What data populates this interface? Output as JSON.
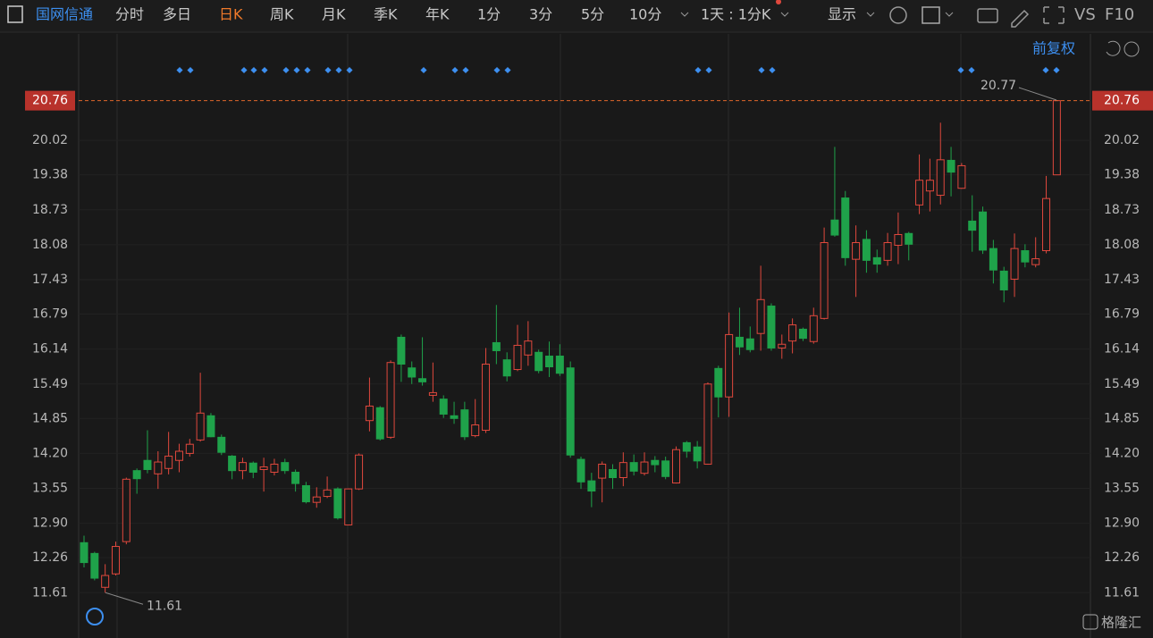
{
  "header": {
    "stock_name": "国网信通",
    "periods": [
      "分时",
      "多日",
      "日K",
      "周K",
      "月K",
      "季K",
      "年K",
      "1分",
      "3分",
      "5分",
      "10分"
    ],
    "interval": "1天 : 1分K",
    "display": "显示",
    "vs": "VS",
    "f10": "F10"
  },
  "adjust": "前复权",
  "watermark": "格隆汇",
  "chart_data": {
    "type": "candlestick",
    "categories": [
      null,
      null,
      null,
      null,
      null,
      null,
      null,
      null,
      null,
      null,
      null,
      null,
      null,
      null,
      null,
      null,
      null,
      null,
      null,
      null,
      null,
      null,
      null,
      null,
      null,
      null,
      null,
      null,
      null,
      null,
      null,
      null,
      null,
      null,
      null,
      null,
      null,
      null,
      null,
      null,
      null,
      null,
      null,
      null,
      null,
      null,
      null,
      null,
      null,
      null,
      null,
      null,
      null,
      null,
      null,
      null,
      null,
      null,
      null,
      null,
      null,
      null,
      null,
      null,
      null,
      null,
      null,
      null,
      null,
      null,
      null,
      null,
      null,
      null,
      null,
      null,
      null,
      null,
      null,
      null,
      null,
      null,
      null,
      null,
      null,
      null,
      null,
      null,
      null,
      null,
      null,
      null,
      null
    ],
    "open": [
      12.54,
      12.34,
      11.71,
      11.96,
      12.56,
      13.88,
      14.07,
      13.82,
      13.92,
      14.07,
      14.2,
      14.45,
      14.9,
      14.5,
      14.15,
      13.88,
      14.02,
      13.9,
      13.85,
      14.03,
      13.85,
      13.6,
      13.29,
      13.4,
      13.54,
      12.87,
      13.54,
      14.81,
      15.05,
      14.5,
      16.36,
      15.79,
      15.59,
      15.28,
      15.21,
      14.9,
      15.01,
      14.53,
      14.63,
      16.26,
      15.94,
      15.76,
      16.03,
      16.08,
      16.01,
      16.01,
      15.79,
      14.09,
      13.69,
      13.74,
      13.9,
      13.75,
      14.03,
      13.83,
      14.07,
      14.06,
      13.65,
      14.4,
      14.32,
      14.0,
      15.78,
      15.25,
      16.36,
      16.33,
      16.43,
      16.94,
      16.16,
      16.29,
      16.51,
      16.28,
      16.71,
      18.54,
      18.95,
      17.81,
      18.18,
      17.84,
      17.79,
      18.07,
      18.29,
      18.82,
      19.08,
      19.0,
      19.65,
      19.13,
      18.52,
      18.69,
      18.01,
      17.59,
      17.44,
      17.97,
      17.71,
      17.97,
      19.38
    ],
    "high": [
      12.67,
      12.37,
      12.14,
      12.56,
      13.75,
      13.92,
      14.63,
      14.24,
      14.6,
      14.38,
      14.47,
      15.7,
      14.95,
      14.55,
      14.17,
      14.12,
      14.05,
      14.12,
      14.1,
      14.1,
      13.9,
      13.67,
      13.57,
      13.77,
      13.57,
      13.55,
      14.2,
      15.61,
      15.08,
      15.93,
      16.41,
      15.91,
      16.36,
      15.89,
      15.28,
      15.16,
      15.16,
      15.21,
      16.16,
      16.96,
      16.08,
      16.59,
      16.66,
      16.13,
      16.28,
      16.23,
      15.91,
      14.14,
      13.84,
      14.05,
      14.0,
      14.22,
      14.18,
      14.22,
      14.15,
      14.14,
      14.33,
      14.43,
      14.43,
      15.52,
      15.83,
      16.82,
      16.91,
      16.56,
      17.69,
      16.99,
      16.41,
      16.71,
      16.54,
      16.91,
      18.4,
      19.9,
      19.08,
      18.44,
      18.35,
      17.99,
      18.3,
      18.68,
      18.32,
      19.76,
      19.68,
      20.35,
      19.9,
      19.6,
      19.0,
      18.79,
      18.17,
      17.67,
      18.29,
      18.09,
      18.22,
      19.36,
      20.77
    ],
    "low": [
      12.08,
      11.84,
      11.61,
      11.93,
      12.51,
      13.45,
      13.83,
      13.54,
      13.81,
      13.85,
      14.14,
      14.42,
      14.5,
      14.17,
      13.72,
      13.72,
      13.74,
      13.49,
      13.79,
      13.82,
      13.49,
      13.27,
      13.19,
      13.37,
      12.97,
      12.87,
      13.52,
      14.61,
      14.44,
      14.47,
      15.53,
      15.49,
      15.46,
      15.16,
      14.86,
      14.75,
      14.45,
      14.5,
      14.58,
      15.86,
      15.54,
      15.73,
      15.83,
      15.69,
      15.62,
      15.64,
      14.12,
      13.54,
      13.2,
      13.29,
      13.54,
      13.59,
      13.79,
      13.79,
      13.85,
      13.72,
      13.64,
      14.12,
      13.92,
      13.99,
      14.87,
      14.88,
      16.03,
      16.08,
      16.11,
      16.11,
      15.96,
      16.06,
      16.29,
      16.24,
      16.69,
      18.23,
      17.69,
      17.11,
      17.56,
      17.56,
      17.69,
      17.72,
      17.79,
      18.65,
      18.7,
      18.83,
      18.98,
      19.12,
      17.95,
      17.91,
      17.36,
      17.01,
      17.11,
      17.66,
      17.66,
      17.92,
      19.38
    ],
    "close": [
      12.17,
      11.88,
      11.93,
      12.47,
      13.72,
      13.73,
      13.9,
      14.04,
      14.15,
      14.24,
      14.37,
      14.95,
      14.51,
      14.22,
      13.88,
      14.03,
      13.85,
      13.95,
      14.0,
      13.88,
      13.64,
      13.3,
      13.39,
      13.52,
      13.0,
      13.54,
      14.17,
      15.08,
      14.47,
      15.89,
      15.86,
      15.62,
      15.53,
      15.33,
      14.93,
      14.85,
      14.51,
      14.73,
      15.86,
      16.11,
      15.64,
      16.21,
      16.29,
      15.74,
      15.81,
      15.69,
      14.17,
      13.67,
      13.5,
      14.0,
      13.75,
      14.03,
      13.87,
      14.04,
      13.99,
      13.77,
      14.27,
      14.24,
      14.06,
      15.49,
      15.25,
      16.41,
      16.18,
      16.13,
      17.06,
      16.16,
      16.23,
      16.59,
      16.34,
      16.76,
      18.12,
      18.26,
      17.84,
      18.12,
      17.79,
      17.72,
      18.12,
      18.27,
      18.09,
      19.28,
      19.28,
      19.66,
      19.43,
      19.55,
      18.35,
      17.98,
      17.61,
      17.24,
      18.01,
      17.76,
      17.82,
      18.94,
      20.76
    ],
    "up_color": "#e0483d",
    "down_color": "#1fa24a",
    "ylim": [
      11.0,
      22.0
    ],
    "yticks": [
      11.61,
      12.26,
      {
        "value": 12.9,
        "label": "12.90"
      },
      13.55,
      {
        "value": 14.2,
        "label": "14.20"
      },
      14.85,
      15.49,
      16.14,
      16.79,
      17.43,
      18.08,
      18.73,
      19.38,
      20.02
    ],
    "last_price": 20.76,
    "high_label": 20.77,
    "low_label": 11.61,
    "grid": true
  }
}
